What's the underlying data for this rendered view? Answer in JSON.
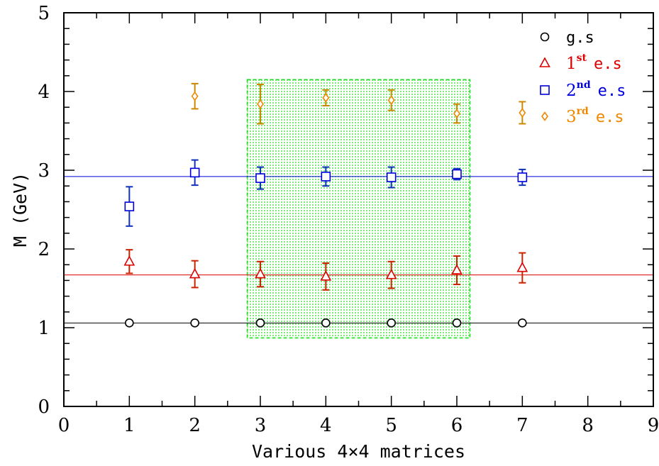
{
  "chart_data": {
    "type": "scatter",
    "xlabel": "Various 4×4 matrices",
    "ylabel": "M (GeV)",
    "xlim": [
      0,
      9
    ],
    "ylim": [
      0,
      5
    ],
    "x_ticks": [
      "0",
      "1",
      "2",
      "3",
      "4",
      "5",
      "6",
      "7",
      "8",
      "9"
    ],
    "y_ticks": [
      "0",
      "1",
      "2",
      "3",
      "4",
      "5"
    ],
    "grid": false,
    "legend_position": "top-right",
    "highlight_region": {
      "x": [
        2.8,
        6.2
      ],
      "y": [
        0.87,
        4.15
      ],
      "color": "#22dd22"
    },
    "series": [
      {
        "name": "g.s",
        "marker": "circle",
        "color": "#000000",
        "fit_line": 1.06,
        "x": [
          1,
          2,
          3,
          4,
          5,
          6,
          7
        ],
        "y": [
          1.06,
          1.06,
          1.06,
          1.06,
          1.06,
          1.06,
          1.06
        ],
        "err": [
          0,
          0,
          0,
          0,
          0,
          0,
          0
        ]
      },
      {
        "name": "1st e.s",
        "name_main": "1",
        "name_sup": "st",
        "name_rest": "e.s",
        "marker": "triangle",
        "color": "#dd0000",
        "bar_color": "#cc2200",
        "fit_line": 1.67,
        "x": [
          1,
          2,
          3,
          4,
          5,
          6,
          7
        ],
        "y": [
          1.84,
          1.68,
          1.68,
          1.65,
          1.67,
          1.73,
          1.76
        ],
        "err": [
          0.15,
          0.17,
          0.16,
          0.17,
          0.17,
          0.18,
          0.19
        ]
      },
      {
        "name": "2nd e.s",
        "name_main": "2",
        "name_sup": "nd",
        "name_rest": "e.s",
        "marker": "square",
        "color": "#0000dd",
        "bar_color": "#1133bb",
        "fit_line": 2.92,
        "x": [
          1,
          2,
          3,
          4,
          5,
          6,
          7
        ],
        "y": [
          2.54,
          2.97,
          2.9,
          2.92,
          2.91,
          2.95,
          2.91
        ],
        "err": [
          0.25,
          0.16,
          0.14,
          0.12,
          0.13,
          0.07,
          0.1
        ]
      },
      {
        "name": "3rd e.s",
        "name_main": "3",
        "name_sup": "rd",
        "name_rest": "e.s",
        "marker": "diamond",
        "color": "#ee8800",
        "bar_color": "#cc8800",
        "fit_line": null,
        "x": [
          2,
          3,
          4,
          5,
          6,
          7
        ],
        "y": [
          3.94,
          3.84,
          3.92,
          3.89,
          3.72,
          3.73
        ],
        "err": [
          0.16,
          0.25,
          0.1,
          0.13,
          0.12,
          0.14
        ]
      }
    ]
  }
}
